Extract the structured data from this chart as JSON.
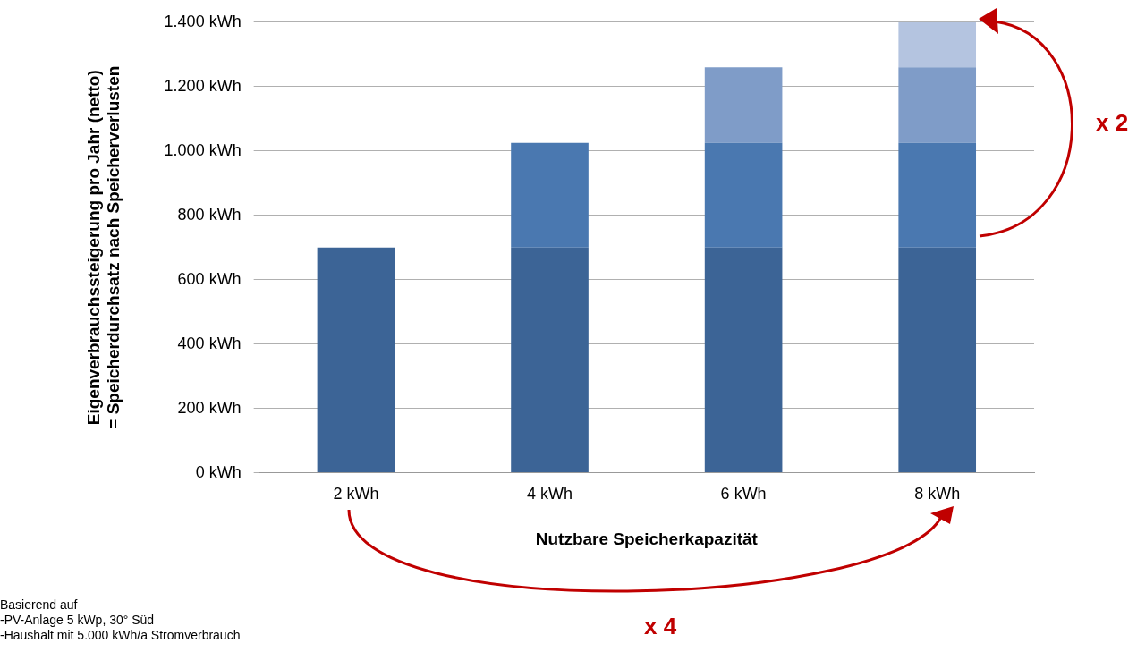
{
  "chart_data": {
    "type": "bar",
    "stacked": true,
    "xlabel": "Nutzbare Speicherkapazität",
    "ylabel": "Eigenverbrauchssteigerung pro Jahr (netto)\n= Speicherdurchsatz nach Speicherverlusten",
    "categories": [
      "2 kWh",
      "4 kWh",
      "6 kWh",
      "8 kWh"
    ],
    "series": [
      {
        "color": "#3c6496",
        "values": [
          700,
          700,
          700,
          700
        ]
      },
      {
        "color": "#4a78b0",
        "values": [
          null,
          325,
          325,
          325
        ]
      },
      {
        "color": "#7f9cc8",
        "values": [
          null,
          null,
          235,
          235
        ]
      },
      {
        "color": "#b4c4e0",
        "values": [
          null,
          null,
          null,
          140
        ]
      }
    ],
    "ylim": [
      0,
      1400
    ],
    "yticks": [
      {
        "value": 0,
        "label": "0 kWh"
      },
      {
        "value": 200,
        "label": "200 kWh"
      },
      {
        "value": 400,
        "label": "400 kWh"
      },
      {
        "value": 600,
        "label": "600 kWh"
      },
      {
        "value": 800,
        "label": "800 kWh"
      },
      {
        "value": 1000,
        "label": "1.000 kWh"
      },
      {
        "value": 1200,
        "label": "1.200 kWh"
      },
      {
        "value": 1400,
        "label": "1.400 kWh"
      }
    ],
    "grid": "y",
    "legend": false,
    "annotations": [
      "x 2",
      "x 4",
      "Basierend auf\n-PV-Anlage 5 kWp, 30° Süd\n-Haushalt mit 5.000 kWh/a Stromverbrauch"
    ]
  }
}
